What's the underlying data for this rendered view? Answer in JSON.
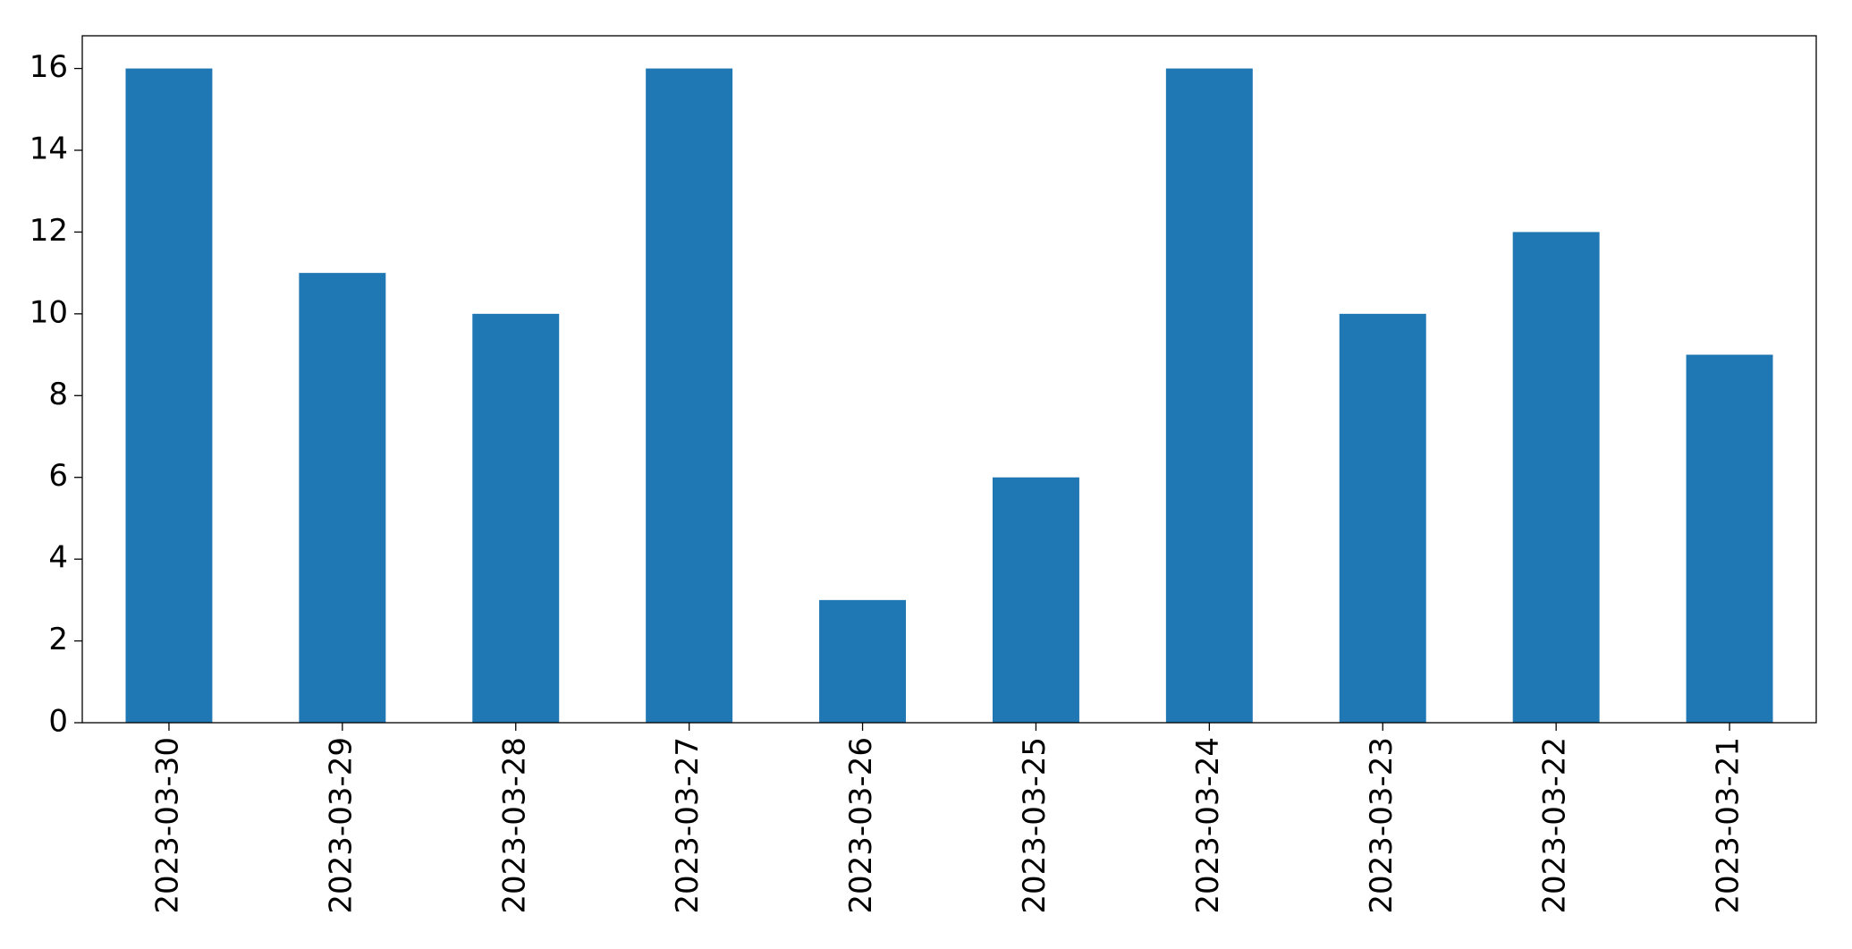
{
  "chart_data": {
    "type": "bar",
    "categories": [
      "2023-03-30",
      "2023-03-29",
      "2023-03-28",
      "2023-03-27",
      "2023-03-26",
      "2023-03-25",
      "2023-03-24",
      "2023-03-23",
      "2023-03-22",
      "2023-03-21"
    ],
    "values": [
      16,
      11,
      10,
      16,
      3,
      6,
      16,
      10,
      12,
      9
    ],
    "color": "#1f77b4",
    "ylim": [
      0,
      16.8
    ],
    "yticks": [
      0,
      2,
      4,
      6,
      8,
      10,
      12,
      14,
      16
    ],
    "grid": false
  }
}
